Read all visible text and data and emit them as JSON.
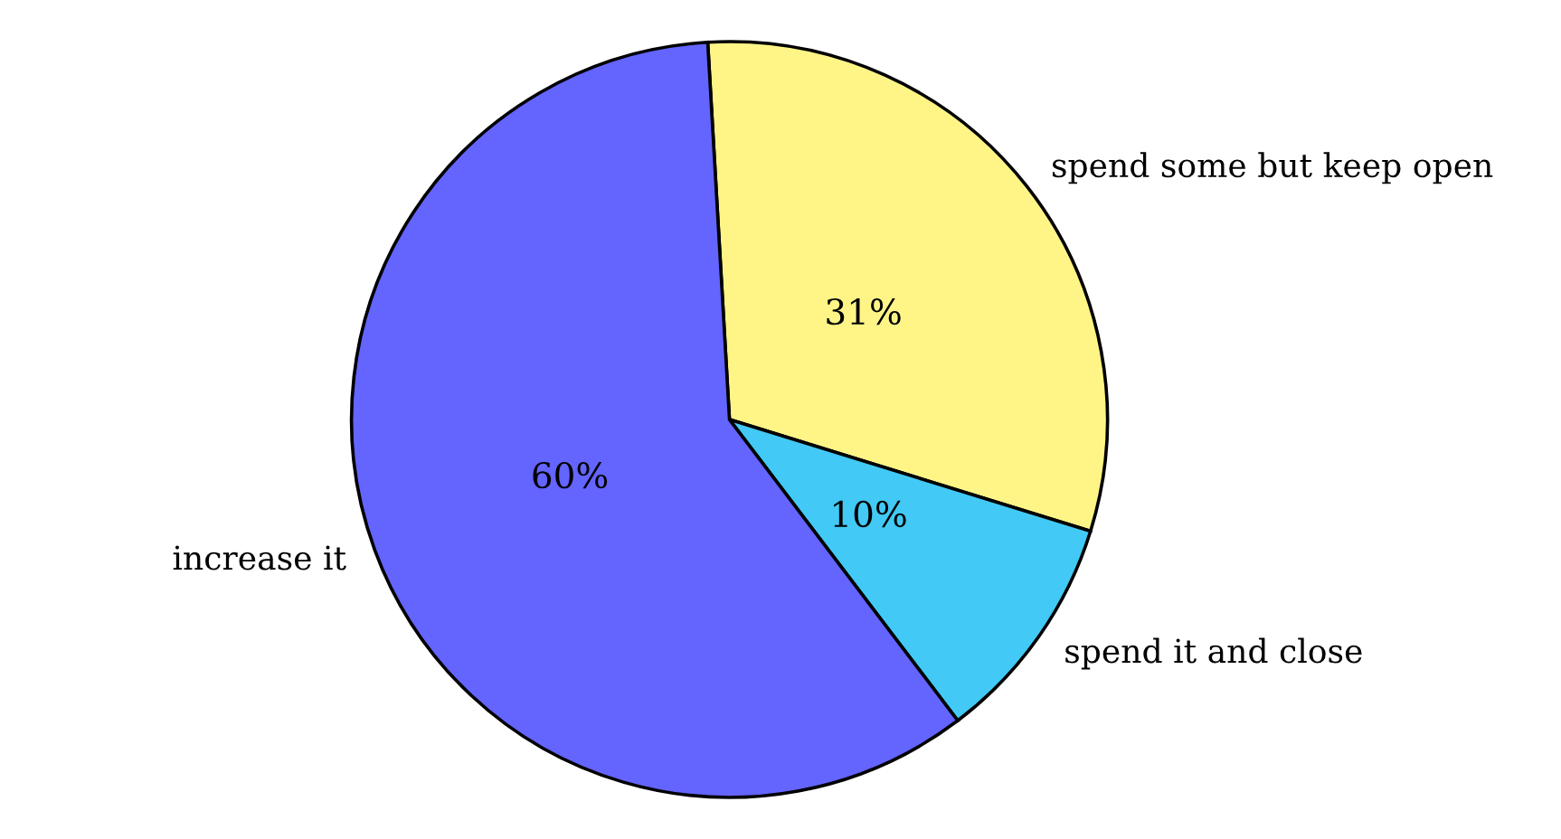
{
  "chart_data": {
    "type": "pie",
    "categories": [
      "spend some but keep open",
      "spend it and close",
      "increase it"
    ],
    "values": [
      31,
      10,
      60
    ],
    "value_labels": [
      "31%",
      "10%",
      "60%"
    ],
    "colors": [
      "#fff587",
      "#42c9f5",
      "#6464ff"
    ]
  }
}
